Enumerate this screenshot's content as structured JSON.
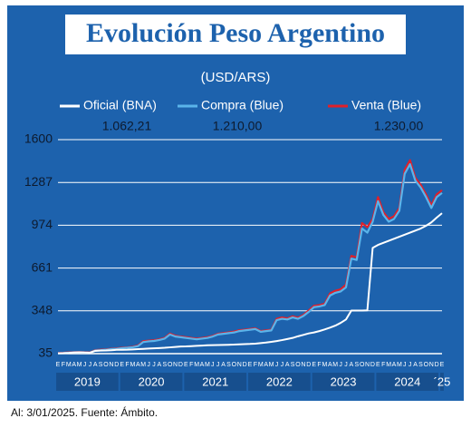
{
  "chart_data": {
    "type": "line",
    "title": "Evolución Peso Argentino",
    "subtitle": "(USD/ARS)",
    "footer": "Al: 3/01/2025. Fuente: Ámbito.",
    "categories": [
      "E",
      "F",
      "M",
      "A",
      "M",
      "J",
      "J",
      "A",
      "S",
      "O",
      "N",
      "D",
      "E",
      "F",
      "M",
      "A",
      "M",
      "J",
      "J",
      "A",
      "S",
      "O",
      "N",
      "D",
      "E",
      "F",
      "M",
      "A",
      "M",
      "J",
      "J",
      "A",
      "S",
      "O",
      "N",
      "D",
      "E",
      "F",
      "M",
      "A",
      "M",
      "J",
      "J",
      "A",
      "S",
      "O",
      "N",
      "D",
      "E",
      "F",
      "M",
      "A",
      "M",
      "J",
      "J",
      "A",
      "S",
      "O",
      "N",
      "D",
      "E",
      "F",
      "M",
      "A",
      "M",
      "J",
      "J",
      "A",
      "S",
      "O",
      "N",
      "D",
      "E"
    ],
    "groups": [
      "2019",
      "2020",
      "2021",
      "2022",
      "2023",
      "2024",
      "´25"
    ],
    "ylim": [
      35,
      1600
    ],
    "yticks": [
      35,
      348,
      661,
      974,
      1287,
      1600
    ],
    "grid": true,
    "series": [
      {
        "name": "Venta (Blue)",
        "color": "#e0202a",
        "values": [
          39,
          41,
          44,
          46,
          46,
          45,
          44,
          61,
          63,
          66,
          71,
          73,
          78,
          81,
          85,
          94,
          126,
          130,
          133,
          140,
          150,
          182,
          166,
          160,
          155,
          150,
          145,
          150,
          155,
          165,
          180,
          185,
          190,
          196,
          206,
          210,
          215,
          220,
          200,
          205,
          210,
          290,
          300,
          292,
          308,
          298,
          318,
          350,
          385,
          390,
          400,
          475,
          495,
          505,
          540,
          750,
          740,
          990,
          960,
          1020,
          1180,
          1070,
          1020,
          1040,
          1100,
          1380,
          1450,
          1320,
          1270,
          1200,
          1120,
          1200,
          1230
        ],
        "value_labels": [
          null,
          null,
          null,
          null,
          null,
          null,
          null,
          null,
          null,
          null,
          null,
          null,
          null,
          null,
          null,
          null,
          null,
          null,
          null,
          null,
          null,
          null,
          null,
          null,
          null,
          null,
          null,
          null,
          null,
          null,
          null,
          null,
          null,
          null,
          null,
          null,
          null,
          null,
          null,
          null,
          null,
          null,
          null,
          null,
          null,
          null,
          null,
          null,
          null,
          null,
          null,
          null,
          null,
          null,
          null,
          null,
          null,
          null,
          null,
          null,
          null,
          null,
          null,
          null,
          null,
          null,
          null,
          null,
          null,
          null,
          null,
          null,
          "1.230,00"
        ]
      },
      {
        "name": "Compra (Blue)",
        "color": "#5ab4ea",
        "values": [
          37,
          39,
          42,
          44,
          44,
          43,
          42,
          58,
          60,
          63,
          68,
          70,
          75,
          78,
          82,
          90,
          120,
          125,
          128,
          135,
          145,
          175,
          160,
          155,
          150,
          145,
          140,
          145,
          150,
          160,
          175,
          180,
          185,
          190,
          200,
          205,
          210,
          215,
          195,
          200,
          205,
          280,
          290,
          285,
          300,
          290,
          310,
          340,
          375,
          380,
          390,
          460,
          480,
          490,
          520,
          730,
          720,
          950,
          920,
          1000,
          1150,
          1050,
          1000,
          1020,
          1080,
          1350,
          1420,
          1300,
          1250,
          1180,
          1100,
          1180,
          1210
        ],
        "value_labels": [
          null,
          null,
          null,
          null,
          null,
          null,
          null,
          null,
          null,
          null,
          null,
          null,
          null,
          null,
          null,
          null,
          null,
          null,
          null,
          null,
          null,
          null,
          null,
          null,
          null,
          null,
          null,
          null,
          null,
          null,
          null,
          null,
          null,
          null,
          null,
          null,
          null,
          null,
          null,
          null,
          null,
          null,
          null,
          null,
          null,
          null,
          null,
          null,
          null,
          null,
          null,
          null,
          null,
          null,
          null,
          null,
          null,
          null,
          null,
          null,
          null,
          null,
          null,
          null,
          null,
          null,
          null,
          null,
          null,
          null,
          null,
          null,
          "1.210,00"
        ]
      },
      {
        "name": "Oficial (BNA)",
        "color": "#ffffff",
        "values": [
          37.5,
          38,
          40,
          43,
          45,
          43,
          42,
          55,
          57,
          58,
          60,
          63,
          63,
          64,
          66,
          68,
          70,
          72,
          74,
          76,
          78,
          81,
          84,
          87,
          88,
          90,
          92,
          94,
          96,
          97,
          98,
          99,
          100,
          101,
          103,
          105,
          106,
          108,
          112,
          116,
          121,
          127,
          134,
          142,
          150,
          162,
          172,
          183,
          190,
          200,
          212,
          225,
          240,
          260,
          285,
          350,
          350,
          350,
          352,
          808,
          830,
          845,
          860,
          875,
          890,
          905,
          920,
          935,
          950,
          970,
          995,
          1030,
          1062.21
        ],
        "value_labels": [
          null,
          null,
          null,
          null,
          null,
          null,
          null,
          null,
          null,
          null,
          null,
          null,
          null,
          null,
          null,
          null,
          null,
          null,
          null,
          null,
          null,
          null,
          null,
          null,
          null,
          null,
          null,
          null,
          null,
          null,
          null,
          null,
          null,
          null,
          null,
          null,
          null,
          null,
          null,
          null,
          null,
          null,
          null,
          null,
          null,
          null,
          null,
          null,
          null,
          null,
          null,
          null,
          null,
          null,
          null,
          null,
          null,
          null,
          null,
          null,
          null,
          null,
          null,
          null,
          null,
          null,
          null,
          null,
          null,
          null,
          null,
          null,
          "1.062,21"
        ]
      }
    ]
  }
}
